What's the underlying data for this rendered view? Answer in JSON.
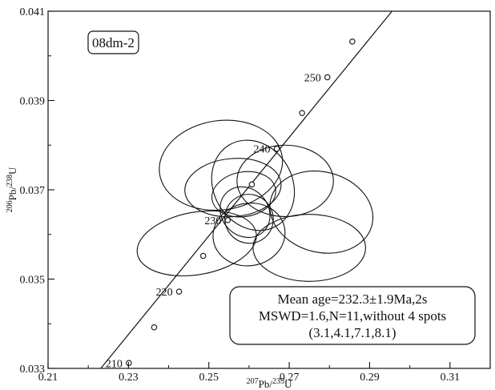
{
  "chart_data": {
    "type": "scatter",
    "title": "",
    "sample_label": "08dm-2",
    "xlabel": "207Pb/235U",
    "ylabel": "206Pb/238U",
    "xlim": [
      0.21,
      0.32
    ],
    "ylim": [
      0.033,
      0.041
    ],
    "x_ticks": [
      0.21,
      0.23,
      0.25,
      0.27,
      0.29,
      0.31
    ],
    "x_tick_labels": [
      "0.21",
      "0.23",
      "0.25",
      "0.27",
      "0.29",
      "0.31"
    ],
    "y_ticks": [
      0.033,
      0.035,
      0.037,
      0.039,
      0.041
    ],
    "y_tick_labels": [
      "0.033",
      "0.035",
      "0.037",
      "0.039",
      "0.041"
    ],
    "grid": false,
    "concordia_curve": {
      "points": [
        {
          "x": 0.2195,
          "y": 0.0326
        },
        {
          "x": 0.301,
          "y": 0.0416
        }
      ]
    },
    "age_markers": [
      {
        "age": 210,
        "label": "210",
        "x": 0.2301,
        "y": 0.03312
      },
      {
        "x": 0.2364,
        "y": 0.03392
      },
      {
        "age": 220,
        "label": "220",
        "x": 0.2426,
        "y": 0.03472
      },
      {
        "x": 0.2486,
        "y": 0.03552
      },
      {
        "age": 230,
        "label": "230",
        "x": 0.2547,
        "y": 0.03632
      },
      {
        "x": 0.2607,
        "y": 0.03712
      },
      {
        "age": 240,
        "label": "240",
        "x": 0.2669,
        "y": 0.03792
      },
      {
        "x": 0.2732,
        "y": 0.03872
      },
      {
        "age": 250,
        "label": "250",
        "x": 0.2795,
        "y": 0.03952
      },
      {
        "x": 0.2857,
        "y": 0.04032
      }
    ],
    "error_ellipses": [
      {
        "cx": 0.253,
        "cy": 0.03755,
        "rx": 0.0154,
        "ry": 0.001,
        "angle": 8
      },
      {
        "cx": 0.256,
        "cy": 0.03705,
        "rx": 0.012,
        "ry": 0.00065,
        "angle": 5
      },
      {
        "cx": 0.261,
        "cy": 0.0371,
        "rx": 0.0098,
        "ry": 0.00105,
        "angle": 30
      },
      {
        "cx": 0.259,
        "cy": 0.0365,
        "rx": 0.0058,
        "ry": 0.0006,
        "angle": 42
      },
      {
        "cx": 0.2587,
        "cy": 0.0369,
        "rx": 0.008,
        "ry": 0.0005,
        "angle": 10
      },
      {
        "cx": 0.26,
        "cy": 0.03635,
        "rx": 0.006,
        "ry": 0.00055,
        "angle": 30
      },
      {
        "cx": 0.269,
        "cy": 0.0372,
        "rx": 0.012,
        "ry": 0.0008,
        "angle": 0
      },
      {
        "cx": 0.278,
        "cy": 0.0365,
        "rx": 0.013,
        "ry": 0.0009,
        "angle": -15
      },
      {
        "cx": 0.247,
        "cy": 0.0358,
        "rx": 0.015,
        "ry": 0.0007,
        "angle": 10
      },
      {
        "cx": 0.275,
        "cy": 0.0357,
        "rx": 0.014,
        "ry": 0.00075,
        "angle": 0
      },
      {
        "cx": 0.26,
        "cy": 0.036,
        "rx": 0.009,
        "ry": 0.0007,
        "angle": 10
      }
    ],
    "annotation": {
      "lines": [
        "Mean age=232.3±1.9Ma,2s",
        "MSWD=1.6,N=11,without 4 spots",
        "(3.1,4.1,7.1,8.1)"
      ],
      "placement": "bottom-right"
    }
  }
}
